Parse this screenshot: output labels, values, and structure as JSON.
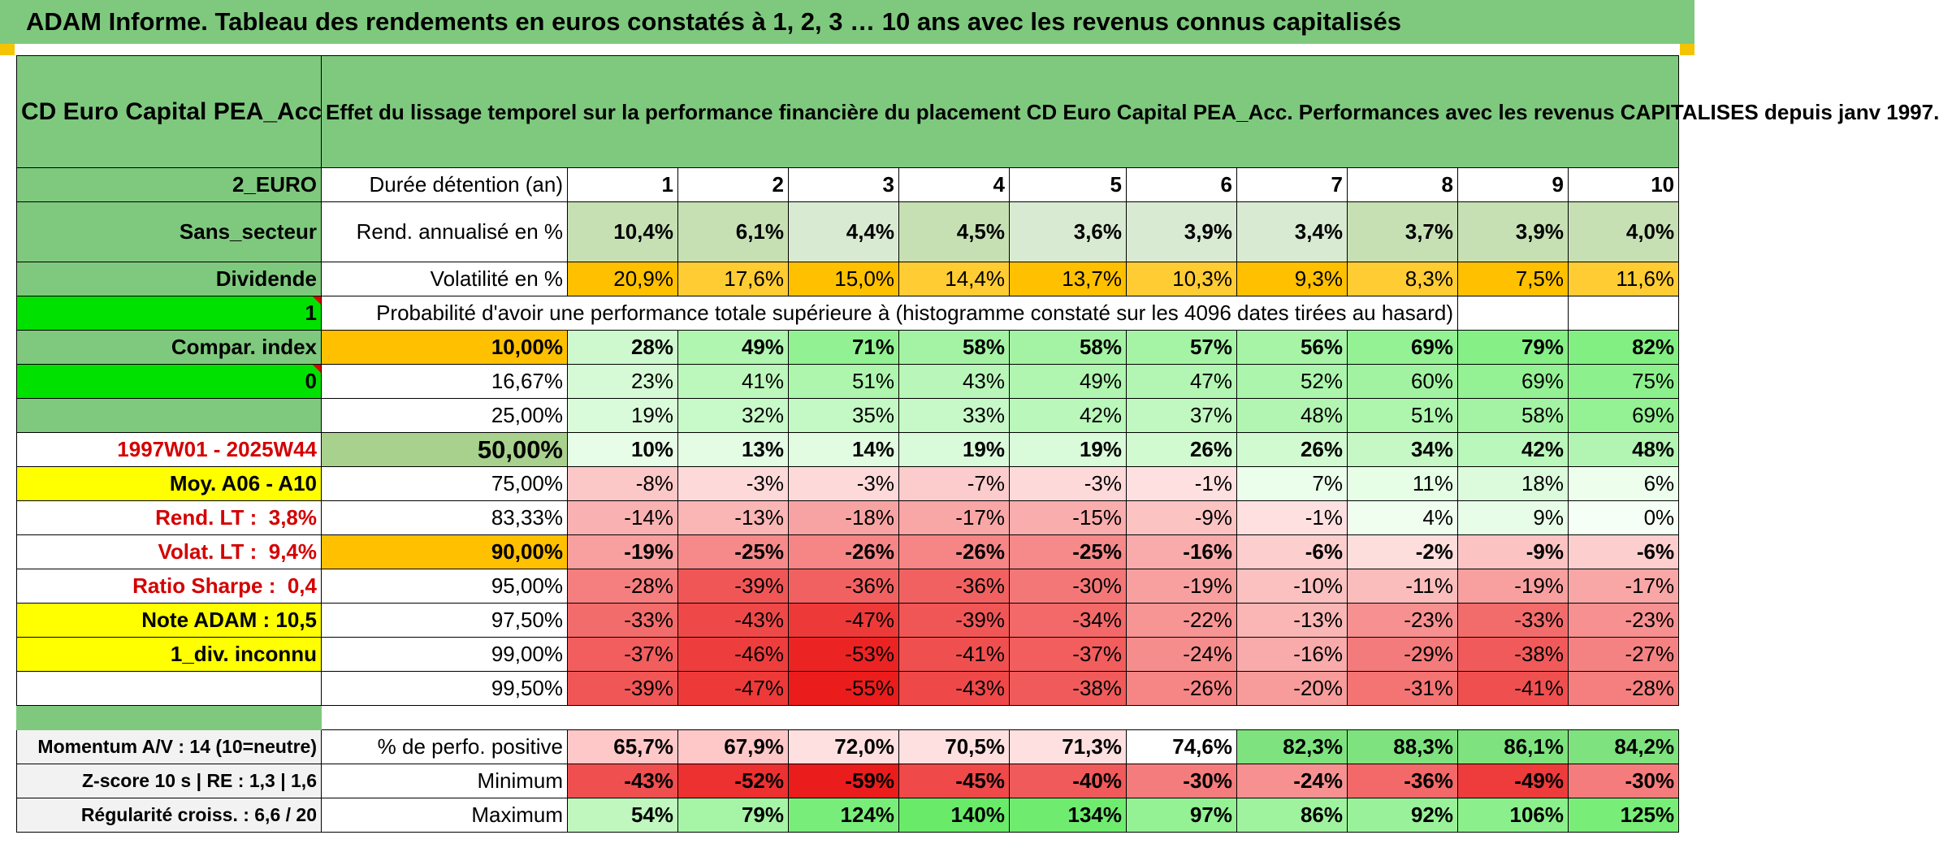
{
  "title": "ADAM Informe. Tableau des rendements en euros constatés à 1, 2, 3 … 10 ans avec les revenus connus capitalisés",
  "fund_name": "CD Euro Capital PEA_Acc",
  "description": "Effet du lissage temporel sur la performance financière du placement CD Euro Capital PEA_Acc. Performances avec les revenus CAPITALISES depuis janv 1997.",
  "left": {
    "currency": "2_EURO",
    "sector": "Sans_secteur",
    "dividend": "Dividende",
    "one": "1",
    "compar_index": "Compar. index",
    "zero": "0",
    "period": "1997W01 - 2025W44",
    "moy": "Moy. A06 - A10",
    "rend_lt_label": "Rend. LT :",
    "rend_lt_value": "3,8%",
    "volat_lt_label": "Volat. LT :",
    "volat_lt_value": "9,4%",
    "sharpe_label": "Ratio Sharpe :",
    "sharpe_value": "0,4",
    "note": "Note ADAM : 10,5",
    "div": "1_div. inconnu",
    "momentum": "Momentum A/V : 14 (10=neutre)",
    "zscore": "Z-score 10 s | RE : 1,3 | 1,6",
    "regularite": "Régularité croiss. : 6,6 / 20"
  },
  "labels": {
    "duree": "Durée détention (an)",
    "rend": "Rend. annualisé en %",
    "volat": "Volatilité en %",
    "proba": "Probabilité d'avoir une performance totale supérieure à (histogramme constaté sur les 4096 dates tirées au hasard)",
    "perf_pos": "% de perfo. positive",
    "minimum": "Minimum",
    "maximum": "Maximum"
  },
  "years": [
    "1",
    "2",
    "3",
    "4",
    "5",
    "6",
    "7",
    "8",
    "9",
    "10"
  ],
  "rend": [
    "10,4%",
    "6,1%",
    "4,4%",
    "4,5%",
    "3,6%",
    "3,9%",
    "3,4%",
    "3,7%",
    "3,9%",
    "4,0%"
  ],
  "volat": [
    "20,9%",
    "17,6%",
    "15,0%",
    "14,4%",
    "13,7%",
    "10,3%",
    "9,3%",
    "8,3%",
    "7,5%",
    "11,6%"
  ],
  "thresholds": [
    {
      "label": "10,00%",
      "values": [
        "28%",
        "49%",
        "71%",
        "58%",
        "58%",
        "57%",
        "56%",
        "69%",
        "79%",
        "82%"
      ]
    },
    {
      "label": "16,67%",
      "values": [
        "23%",
        "41%",
        "51%",
        "43%",
        "49%",
        "47%",
        "52%",
        "60%",
        "69%",
        "75%"
      ]
    },
    {
      "label": "25,00%",
      "values": [
        "19%",
        "32%",
        "35%",
        "33%",
        "42%",
        "37%",
        "48%",
        "51%",
        "58%",
        "69%"
      ]
    },
    {
      "label": "50,00%",
      "values": [
        "10%",
        "13%",
        "14%",
        "19%",
        "19%",
        "26%",
        "26%",
        "34%",
        "42%",
        "48%"
      ]
    },
    {
      "label": "75,00%",
      "values": [
        "-8%",
        "-3%",
        "-3%",
        "-7%",
        "-3%",
        "-1%",
        "7%",
        "11%",
        "18%",
        "6%"
      ]
    },
    {
      "label": "83,33%",
      "values": [
        "-14%",
        "-13%",
        "-18%",
        "-17%",
        "-15%",
        "-9%",
        "-1%",
        "4%",
        "9%",
        "0%"
      ]
    },
    {
      "label": "90,00%",
      "values": [
        "-19%",
        "-25%",
        "-26%",
        "-26%",
        "-25%",
        "-16%",
        "-6%",
        "-2%",
        "-9%",
        "-6%"
      ]
    },
    {
      "label": "95,00%",
      "values": [
        "-28%",
        "-39%",
        "-36%",
        "-36%",
        "-30%",
        "-19%",
        "-10%",
        "-11%",
        "-19%",
        "-17%"
      ]
    },
    {
      "label": "97,50%",
      "values": [
        "-33%",
        "-43%",
        "-47%",
        "-39%",
        "-34%",
        "-22%",
        "-13%",
        "-23%",
        "-33%",
        "-23%"
      ]
    },
    {
      "label": "99,00%",
      "values": [
        "-37%",
        "-46%",
        "-53%",
        "-41%",
        "-37%",
        "-24%",
        "-16%",
        "-29%",
        "-38%",
        "-27%"
      ]
    },
    {
      "label": "99,50%",
      "values": [
        "-39%",
        "-47%",
        "-55%",
        "-43%",
        "-38%",
        "-26%",
        "-20%",
        "-31%",
        "-41%",
        "-28%"
      ]
    }
  ],
  "perf_pos": [
    "65,7%",
    "67,9%",
    "72,0%",
    "70,5%",
    "71,3%",
    "74,6%",
    "82,3%",
    "88,3%",
    "86,1%",
    "84,2%"
  ],
  "minimum": [
    "-43%",
    "-52%",
    "-59%",
    "-45%",
    "-40%",
    "-30%",
    "-24%",
    "-36%",
    "-49%",
    "-30%"
  ],
  "maximum": [
    "54%",
    "79%",
    "124%",
    "140%",
    "134%",
    "97%",
    "86%",
    "92%",
    "106%",
    "125%"
  ],
  "colors": {
    "header_green": "#7fc97f",
    "bright_green": "#00e100",
    "orange": "#ffc000",
    "yellow": "#ffff00",
    "red_text": "#d40000"
  }
}
